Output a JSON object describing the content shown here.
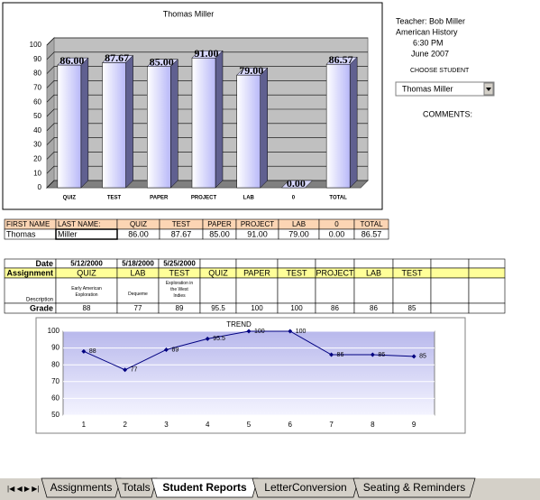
{
  "chart_data": [
    {
      "type": "bar3d",
      "title": "Thomas Miller",
      "categories": [
        "QUIZ",
        "TEST",
        "PAPER",
        "PROJECT",
        "LAB",
        "0",
        "TOTAL"
      ],
      "values": [
        86,
        87.67,
        85,
        91,
        79,
        0,
        86.57
      ],
      "value_labels": [
        "86.00",
        "87.67",
        "85.00",
        "91.00",
        "79.00",
        "0.00",
        "86.57"
      ],
      "color": "#c8c8ff",
      "ylim": [
        0,
        100
      ],
      "yticks": [
        0,
        10,
        20,
        30,
        40,
        50,
        60,
        70,
        80,
        90,
        100
      ],
      "grid": true
    },
    {
      "type": "line",
      "title": "TREND",
      "categories": [
        "1",
        "2",
        "3",
        "4",
        "5",
        "6",
        "7",
        "8",
        "9"
      ],
      "values": [
        88,
        77,
        89,
        95.5,
        100,
        100,
        86,
        86,
        85
      ],
      "color": "#000080",
      "ylim": [
        50,
        100
      ],
      "yticks": [
        50,
        60,
        70,
        80,
        90,
        100
      ],
      "grid": true
    }
  ],
  "header": {
    "teacher": "Teacher:  Bob Miller",
    "course": "American History",
    "time": "6:30  PM",
    "date": "June  2007",
    "choose": "CHOOSE STUDENT",
    "student": "Thomas Miller",
    "comments": "COMMENTS:"
  },
  "summary_table": {
    "headers": [
      "FIRST NAME",
      "LAST NAME:",
      "QUIZ",
      "TEST",
      "PAPER",
      "PROJECT",
      "LAB",
      "0",
      "TOTAL"
    ],
    "row": [
      "Thomas",
      "Miller",
      "86.00",
      "87.67",
      "85.00",
      "91.00",
      "79.00",
      "0.00",
      "86.57"
    ]
  },
  "grade_table": {
    "date": {
      "label": "Date",
      "cells": [
        "5/12/2000",
        "5/18/2000",
        "5/25/2000"
      ]
    },
    "assignment": {
      "label": "Assignment",
      "cells": [
        "QUIZ",
        "LAB",
        "TEST",
        "QUIZ",
        "PAPER",
        "TEST",
        "PROJECT",
        "LAB",
        "TEST"
      ]
    },
    "description": {
      "label": "Description",
      "cells": [
        "Early American Exploration",
        "Dequeme",
        "Exploration in the West Indies"
      ]
    },
    "grade": {
      "label": "Grade",
      "cells": [
        "88",
        "77",
        "89",
        "95.5",
        "100",
        "100",
        "86",
        "86",
        "85"
      ]
    }
  },
  "tabs": {
    "items": [
      "Assignments",
      "Totals",
      "Student Reports",
      "LetterConversion",
      "Seating & Reminders"
    ],
    "active": 2
  }
}
